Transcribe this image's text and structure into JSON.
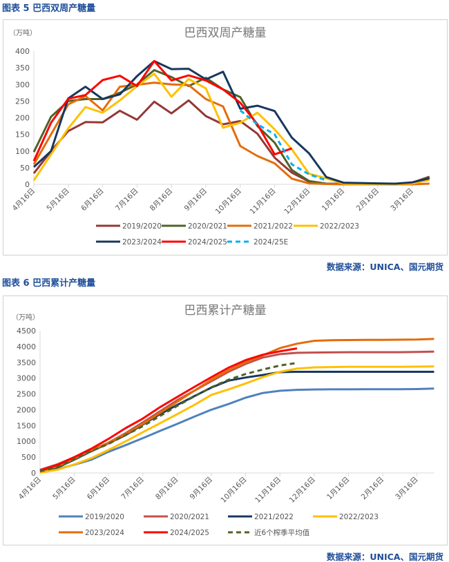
{
  "figure5": {
    "header": "图表 5 巴西双周产糖量",
    "source": "数据来源：UNICA、国元期货"
  },
  "figure6": {
    "header": "图表 6 巴西累计产糖量",
    "source": "数据来源：UNICA、国元期货"
  },
  "chart_data": [
    {
      "type": "line",
      "title": "巴西双周产糖量",
      "ylabel": "（万吨）",
      "ylim": [
        0,
        400
      ],
      "yticks": [
        0,
        50,
        100,
        150,
        200,
        250,
        300,
        350,
        400
      ],
      "xticks": [
        "4月16日",
        "5月16日",
        "6月16日",
        "7月16日",
        "8月16日",
        "9月16日",
        "10月16日",
        "11月16日",
        "12月16日",
        "1月16日",
        "2月16日",
        "3月16日"
      ],
      "grid": false,
      "legend": "bottom",
      "series": [
        {
          "name": "2019/2020",
          "color": "#953735",
          "dash": false,
          "values": [
            33,
            100,
            160,
            187,
            186,
            221,
            194,
            248,
            213,
            252,
            205,
            180,
            190,
            152,
            80,
            35,
            8,
            2,
            1,
            1,
            1,
            1,
            5,
            23
          ]
        },
        {
          "name": "2020/2021",
          "color": "#4f6228",
          "dash": false,
          "values": [
            97,
            203,
            250,
            256,
            256,
            275,
            300,
            343,
            322,
            295,
            320,
            285,
            262,
            175,
            125,
            43,
            10,
            2,
            1,
            1,
            1,
            1,
            5,
            20
          ]
        },
        {
          "name": "2021/2022",
          "color": "#e36c09",
          "dash": false,
          "values": [
            60,
            150,
            240,
            265,
            222,
            293,
            299,
            305,
            300,
            298,
            256,
            234,
            115,
            85,
            63,
            17,
            3,
            1,
            0,
            0,
            0,
            0,
            0,
            2
          ]
        },
        {
          "name": "2022/2023",
          "color": "#ffc000",
          "dash": false,
          "values": [
            12,
            90,
            168,
            232,
            215,
            252,
            295,
            332,
            263,
            316,
            288,
            170,
            185,
            215,
            165,
            105,
            32,
            18,
            2,
            1,
            1,
            1,
            3,
            13
          ]
        },
        {
          "name": "2023/2024",
          "color": "#17375e",
          "dash": false,
          "values": [
            52,
            100,
            258,
            293,
            256,
            270,
            325,
            370,
            346,
            347,
            315,
            338,
            227,
            236,
            220,
            140,
            93,
            22,
            5,
            4,
            3,
            2,
            6,
            18
          ]
        },
        {
          "name": "2024/2025",
          "color": "#ff0000",
          "dash": false,
          "values": [
            70,
            185,
            257,
            268,
            313,
            326,
            295,
            370,
            312,
            327,
            312,
            285,
            245,
            180,
            90,
            108
          ]
        },
        {
          "name": "2024/25E",
          "color": "#00b0f0",
          "dash": true,
          "start": 12,
          "values": [
            222,
            180,
            150,
            60,
            30,
            12
          ]
        }
      ]
    },
    {
      "type": "line",
      "title": "巴西累计产糖量",
      "ylabel": "（万吨）",
      "ylim": [
        0,
        4500
      ],
      "yticks": [
        0,
        500,
        1000,
        1500,
        2000,
        2500,
        3000,
        3500,
        4000,
        4500
      ],
      "xticks": [
        "4月16日",
        "5月16日",
        "6月16日",
        "7月16日",
        "8月16日",
        "9月16日",
        "10月16日",
        "11月16日",
        "12月16日",
        "1月16日",
        "2月16日",
        "3月16日"
      ],
      "grid": false,
      "legend": "bottom",
      "series": [
        {
          "name": "2019/2020",
          "color": "#4f81bd",
          "dash": false,
          "values": [
            30,
            120,
            260,
            420,
            670,
            880,
            1100,
            1330,
            1550,
            1780,
            2000,
            2180,
            2380,
            2530,
            2600,
            2630,
            2640,
            2645,
            2645,
            2650,
            2650,
            2650,
            2655,
            2670
          ]
        },
        {
          "name": "2020/2021",
          "color": "#c0504d",
          "dash": false,
          "values": [
            100,
            270,
            500,
            720,
            960,
            1260,
            1600,
            1950,
            2300,
            2600,
            2900,
            3200,
            3450,
            3650,
            3760,
            3800,
            3810,
            3815,
            3820,
            3820,
            3820,
            3820,
            3830,
            3840
          ]
        },
        {
          "name": "2021/2022",
          "color": "#17375e",
          "dash": false,
          "values": [
            60,
            170,
            420,
            690,
            940,
            1200,
            1530,
            1860,
            2150,
            2430,
            2700,
            2920,
            3020,
            3100,
            3190,
            3200,
            3200,
            3200,
            3200,
            3200,
            3200,
            3200,
            3200,
            3200
          ]
        },
        {
          "name": "2022/2023",
          "color": "#ffc000",
          "dash": false,
          "values": [
            10,
            100,
            270,
            470,
            730,
            1000,
            1290,
            1570,
            1860,
            2150,
            2470,
            2640,
            2830,
            3030,
            3200,
            3300,
            3340,
            3350,
            3360,
            3360,
            3360,
            3360,
            3365,
            3370
          ]
        },
        {
          "name": "2023/2024",
          "color": "#e36c09",
          "dash": false,
          "values": [
            60,
            200,
            450,
            720,
            950,
            1230,
            1550,
            1900,
            2250,
            2600,
            2950,
            3250,
            3500,
            3720,
            3950,
            4090,
            4180,
            4200,
            4205,
            4210,
            4210,
            4215,
            4220,
            4240
          ]
        },
        {
          "name": "2024/2025",
          "color": "#ff0000",
          "dash": false,
          "values": [
            70,
            250,
            500,
            770,
            1080,
            1420,
            1720,
            2080,
            2400,
            2720,
            3030,
            3330,
            3570,
            3740,
            3850,
            3940
          ]
        },
        {
          "name": "近6个榨季平均值",
          "color": "#4f6228",
          "dash": true,
          "values": [
            50,
            180,
            430,
            690,
            920,
            1200,
            1480,
            1800,
            2120,
            2420,
            2710,
            2950,
            3130,
            3270,
            3400,
            3480
          ]
        }
      ]
    }
  ]
}
